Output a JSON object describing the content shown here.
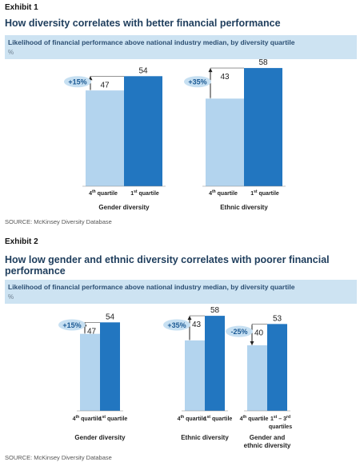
{
  "colors": {
    "light_bar": "#b3d4ee",
    "dark_bar": "#2276c0",
    "badge": "#c7e0f2",
    "badge_text": "#1c5a94",
    "subtitle_bg": "#cde3f2"
  },
  "exhibit1": {
    "label": "Exhibit 1",
    "title": "How diversity correlates with better financial performance",
    "subtitle": "Likelihood of financial performance above national industry median, by diversity quartile",
    "unit": "%",
    "source": "SOURCE: McKinsey Diversity Database"
  },
  "exhibit2": {
    "label": "Exhibit 2",
    "title": "How low gender and ethnic diversity correlates with poorer financial performance",
    "subtitle": "Likelihood of financial performance above national industry median, by diversity quartile",
    "unit": "%",
    "source": "SOURCE: McKinsey Diversity Database"
  },
  "chart_data": [
    {
      "type": "bar",
      "exhibit": "Exhibit 1",
      "ylim": [
        0,
        60
      ],
      "groups": [
        {
          "name": "Gender diversity",
          "categories": [
            "4th quartile",
            "1st quartile"
          ],
          "values": [
            47,
            54
          ],
          "difference": "+15%"
        },
        {
          "name": "Ethnic diversity",
          "categories": [
            "4th quartile",
            "1st quartile"
          ],
          "values": [
            43,
            58
          ],
          "difference": "+35%"
        }
      ]
    },
    {
      "type": "bar",
      "exhibit": "Exhibit 2",
      "ylim": [
        0,
        60
      ],
      "groups": [
        {
          "name": "Gender diversity",
          "categories": [
            "4th quartile",
            "1st quartile"
          ],
          "values": [
            47,
            54
          ],
          "difference": "+15%"
        },
        {
          "name": "Ethnic diversity",
          "categories": [
            "4th quartile",
            "1st quartile"
          ],
          "values": [
            43,
            58
          ],
          "difference": "+35%"
        },
        {
          "name": "Gender and ethnic diversity",
          "categories": [
            "4th quartile",
            "1st – 3rd quartiles"
          ],
          "values": [
            40,
            53
          ],
          "difference": "-25%"
        }
      ]
    }
  ]
}
